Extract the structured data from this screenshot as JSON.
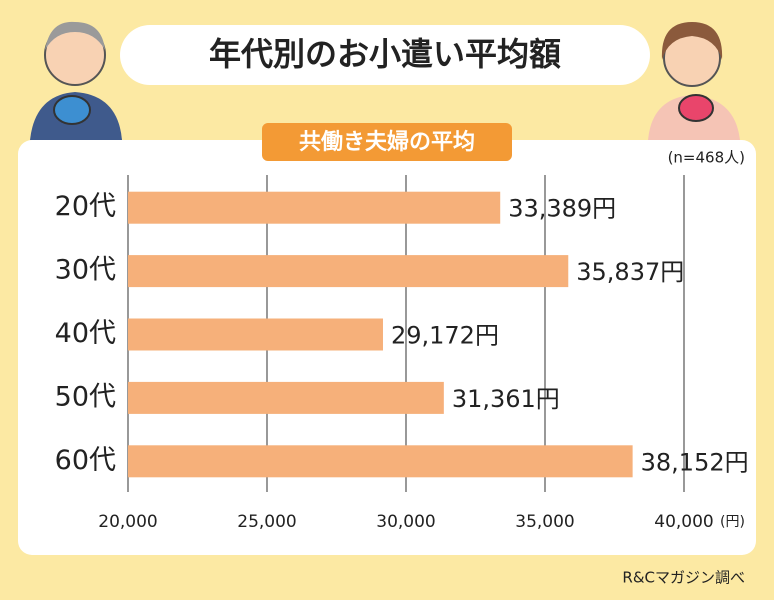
{
  "chart_data": {
    "type": "bar",
    "orientation": "horizontal",
    "title": "年代別のお小遣い平均額",
    "subtitle": "共働き夫婦の平均",
    "note": "(n=468人)",
    "source": "R&Cマガジン調べ",
    "x_unit": "(円)",
    "categories": [
      "20代",
      "30代",
      "40代",
      "50代",
      "60代"
    ],
    "values": [
      33389,
      35837,
      29172,
      31361,
      38152
    ],
    "value_labels": [
      "33,389円",
      "35,837円",
      "29,172円",
      "31,361円",
      "38,152円"
    ],
    "color": "#f6b07a",
    "xlim": [
      20000,
      40000
    ],
    "xticks": [
      {
        "value": 20000,
        "label": "20,000"
      },
      {
        "value": 25000,
        "label": "25,000"
      },
      {
        "value": 30000,
        "label": "30,000"
      },
      {
        "value": 35000,
        "label": "35,000"
      },
      {
        "value": 40000,
        "label": "40,000"
      }
    ],
    "grid": true
  }
}
